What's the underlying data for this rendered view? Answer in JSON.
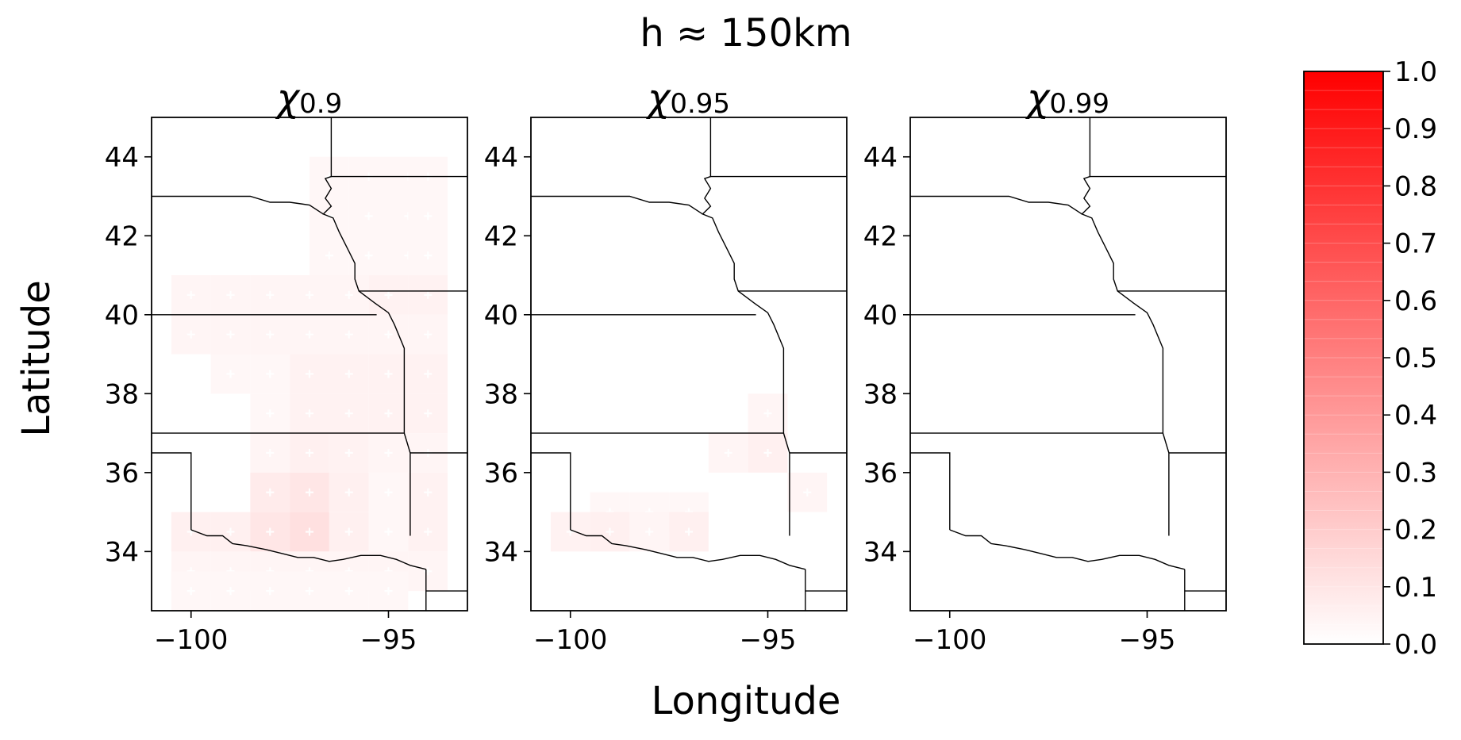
{
  "figure": {
    "suptitle": "h ≈ 150km",
    "xlabel": "Longitude",
    "ylabel": "Latitude"
  },
  "colorbar": {
    "ticks": [
      "0.0",
      "0.1",
      "0.2",
      "0.3",
      "0.4",
      "0.5",
      "0.6",
      "0.7",
      "0.8",
      "0.9",
      "1.0"
    ],
    "range": [
      0,
      1
    ],
    "colormap": [
      "#ffffff",
      "#ff0000"
    ]
  },
  "chart_data": [
    {
      "type": "heatmap",
      "title": "χ",
      "title_sub": "0.9",
      "xlabel": "Longitude",
      "ylabel": "Latitude",
      "xlim": [
        -101,
        -93
      ],
      "ylim": [
        32.5,
        45
      ],
      "xticks": [
        -100,
        -95
      ],
      "xtick_labels": [
        "−100",
        "−95"
      ],
      "yticks": [
        34,
        36,
        38,
        40,
        42,
        44
      ],
      "ytick_labels": [
        "34",
        "36",
        "38",
        "40",
        "42",
        "44"
      ],
      "vrange": [
        0,
        1
      ],
      "cell_size_deg": 1,
      "cells": [
        {
          "lon": -96.5,
          "lat": 43.5,
          "value": 0.03
        },
        {
          "lon": -95.5,
          "lat": 43.5,
          "value": 0.03
        },
        {
          "lon": -94.5,
          "lat": 43.5,
          "value": 0.03
        },
        {
          "lon": -94.0,
          "lat": 43.5,
          "value": 0.03
        },
        {
          "lon": -96.5,
          "lat": 42.5,
          "value": 0.03
        },
        {
          "lon": -95.5,
          "lat": 42.5,
          "value": 0.03
        },
        {
          "lon": -94.5,
          "lat": 42.5,
          "value": 0.03
        },
        {
          "lon": -94.0,
          "lat": 42.5,
          "value": 0.03
        },
        {
          "lon": -96.5,
          "lat": 41.5,
          "value": 0.03
        },
        {
          "lon": -95.5,
          "lat": 41.5,
          "value": 0.03
        },
        {
          "lon": -94.5,
          "lat": 41.5,
          "value": 0.03
        },
        {
          "lon": -94.0,
          "lat": 41.5,
          "value": 0.03
        },
        {
          "lon": -100.0,
          "lat": 40.5,
          "value": 0.04
        },
        {
          "lon": -99.0,
          "lat": 40.5,
          "value": 0.04
        },
        {
          "lon": -98.0,
          "lat": 40.5,
          "value": 0.04
        },
        {
          "lon": -97.0,
          "lat": 40.5,
          "value": 0.04
        },
        {
          "lon": -96.0,
          "lat": 40.5,
          "value": 0.04
        },
        {
          "lon": -95.0,
          "lat": 40.5,
          "value": 0.05
        },
        {
          "lon": -94.0,
          "lat": 40.5,
          "value": 0.05
        },
        {
          "lon": -100.0,
          "lat": 39.5,
          "value": 0.04
        },
        {
          "lon": -99.0,
          "lat": 39.5,
          "value": 0.04
        },
        {
          "lon": -98.0,
          "lat": 39.5,
          "value": 0.04
        },
        {
          "lon": -97.0,
          "lat": 39.5,
          "value": 0.04
        },
        {
          "lon": -96.0,
          "lat": 39.5,
          "value": 0.04
        },
        {
          "lon": -95.0,
          "lat": 39.5,
          "value": 0.04
        },
        {
          "lon": -94.0,
          "lat": 39.5,
          "value": 0.04
        },
        {
          "lon": -99.0,
          "lat": 38.5,
          "value": 0.03
        },
        {
          "lon": -98.0,
          "lat": 38.5,
          "value": 0.03
        },
        {
          "lon": -97.0,
          "lat": 38.5,
          "value": 0.05
        },
        {
          "lon": -96.0,
          "lat": 38.5,
          "value": 0.05
        },
        {
          "lon": -95.0,
          "lat": 38.5,
          "value": 0.05
        },
        {
          "lon": -94.0,
          "lat": 38.5,
          "value": 0.05
        },
        {
          "lon": -98.0,
          "lat": 37.5,
          "value": 0.03
        },
        {
          "lon": -97.0,
          "lat": 37.5,
          "value": 0.05
        },
        {
          "lon": -96.0,
          "lat": 37.5,
          "value": 0.05
        },
        {
          "lon": -95.0,
          "lat": 37.5,
          "value": 0.05
        },
        {
          "lon": -94.0,
          "lat": 37.5,
          "value": 0.05
        },
        {
          "lon": -98.0,
          "lat": 36.5,
          "value": 0.04
        },
        {
          "lon": -97.0,
          "lat": 36.5,
          "value": 0.06
        },
        {
          "lon": -96.0,
          "lat": 36.5,
          "value": 0.05
        },
        {
          "lon": -95.0,
          "lat": 36.5,
          "value": 0.04
        },
        {
          "lon": -94.0,
          "lat": 36.5,
          "value": 0.04
        },
        {
          "lon": -98.0,
          "lat": 35.5,
          "value": 0.08
        },
        {
          "lon": -97.0,
          "lat": 35.5,
          "value": 0.1
        },
        {
          "lon": -96.0,
          "lat": 35.5,
          "value": 0.06
        },
        {
          "lon": -95.0,
          "lat": 35.5,
          "value": 0.03
        },
        {
          "lon": -94.0,
          "lat": 35.5,
          "value": 0.05
        },
        {
          "lon": -100.0,
          "lat": 34.5,
          "value": 0.06
        },
        {
          "lon": -99.0,
          "lat": 34.5,
          "value": 0.06
        },
        {
          "lon": -98.0,
          "lat": 34.5,
          "value": 0.1
        },
        {
          "lon": -97.0,
          "lat": 34.5,
          "value": 0.12
        },
        {
          "lon": -96.0,
          "lat": 34.5,
          "value": 0.06
        },
        {
          "lon": -95.0,
          "lat": 34.5,
          "value": 0.03
        },
        {
          "lon": -94.0,
          "lat": 34.5,
          "value": 0.05
        },
        {
          "lon": -100.0,
          "lat": 33.5,
          "value": 0.04
        },
        {
          "lon": -99.0,
          "lat": 33.5,
          "value": 0.04
        },
        {
          "lon": -98.0,
          "lat": 33.5,
          "value": 0.04
        },
        {
          "lon": -97.0,
          "lat": 33.5,
          "value": 0.04
        },
        {
          "lon": -96.0,
          "lat": 33.5,
          "value": 0.04
        },
        {
          "lon": -95.0,
          "lat": 33.5,
          "value": 0.04
        },
        {
          "lon": -94.0,
          "lat": 33.5,
          "value": 0.04
        },
        {
          "lon": -100.0,
          "lat": 33.0,
          "value": 0.03
        },
        {
          "lon": -99.0,
          "lat": 33.0,
          "value": 0.03
        },
        {
          "lon": -98.0,
          "lat": 33.0,
          "value": 0.03
        },
        {
          "lon": -97.0,
          "lat": 33.0,
          "value": 0.03
        },
        {
          "lon": -96.0,
          "lat": 33.0,
          "value": 0.03
        },
        {
          "lon": -95.0,
          "lat": 33.0,
          "value": 0.03
        }
      ]
    },
    {
      "type": "heatmap",
      "title": "χ",
      "title_sub": "0.95",
      "xlabel": "Longitude",
      "ylabel": "Latitude",
      "xlim": [
        -101,
        -93
      ],
      "ylim": [
        32.5,
        45
      ],
      "xticks": [
        -100,
        -95
      ],
      "xtick_labels": [
        "−100",
        "−95"
      ],
      "yticks": [
        34,
        36,
        38,
        40,
        42,
        44
      ],
      "ytick_labels": [
        "34",
        "36",
        "38",
        "40",
        "42",
        "44"
      ],
      "vrange": [
        0,
        1
      ],
      "cell_size_deg": 1,
      "cells": [
        {
          "lon": -95.0,
          "lat": 37.5,
          "value": 0.04
        },
        {
          "lon": -96.0,
          "lat": 36.5,
          "value": 0.04
        },
        {
          "lon": -95.0,
          "lat": 36.5,
          "value": 0.06
        },
        {
          "lon": -94.0,
          "lat": 35.5,
          "value": 0.04
        },
        {
          "lon": -99.0,
          "lat": 35.0,
          "value": 0.03
        },
        {
          "lon": -98.0,
          "lat": 35.0,
          "value": 0.03
        },
        {
          "lon": -97.0,
          "lat": 35.0,
          "value": 0.03
        },
        {
          "lon": -100.0,
          "lat": 34.5,
          "value": 0.05
        },
        {
          "lon": -99.0,
          "lat": 34.5,
          "value": 0.06
        },
        {
          "lon": -98.0,
          "lat": 34.5,
          "value": 0.04
        },
        {
          "lon": -97.0,
          "lat": 34.5,
          "value": 0.06
        }
      ]
    },
    {
      "type": "heatmap",
      "title": "χ",
      "title_sub": "0.99",
      "xlabel": "Longitude",
      "ylabel": "Latitude",
      "xlim": [
        -101,
        -93
      ],
      "ylim": [
        32.5,
        45
      ],
      "xticks": [
        -100,
        -95
      ],
      "xtick_labels": [
        "−100",
        "−95"
      ],
      "yticks": [
        34,
        36,
        38,
        40,
        42,
        44
      ],
      "ytick_labels": [
        "34",
        "36",
        "38",
        "40",
        "42",
        "44"
      ],
      "vrange": [
        0,
        1
      ],
      "cell_size_deg": 1,
      "cells": []
    }
  ]
}
